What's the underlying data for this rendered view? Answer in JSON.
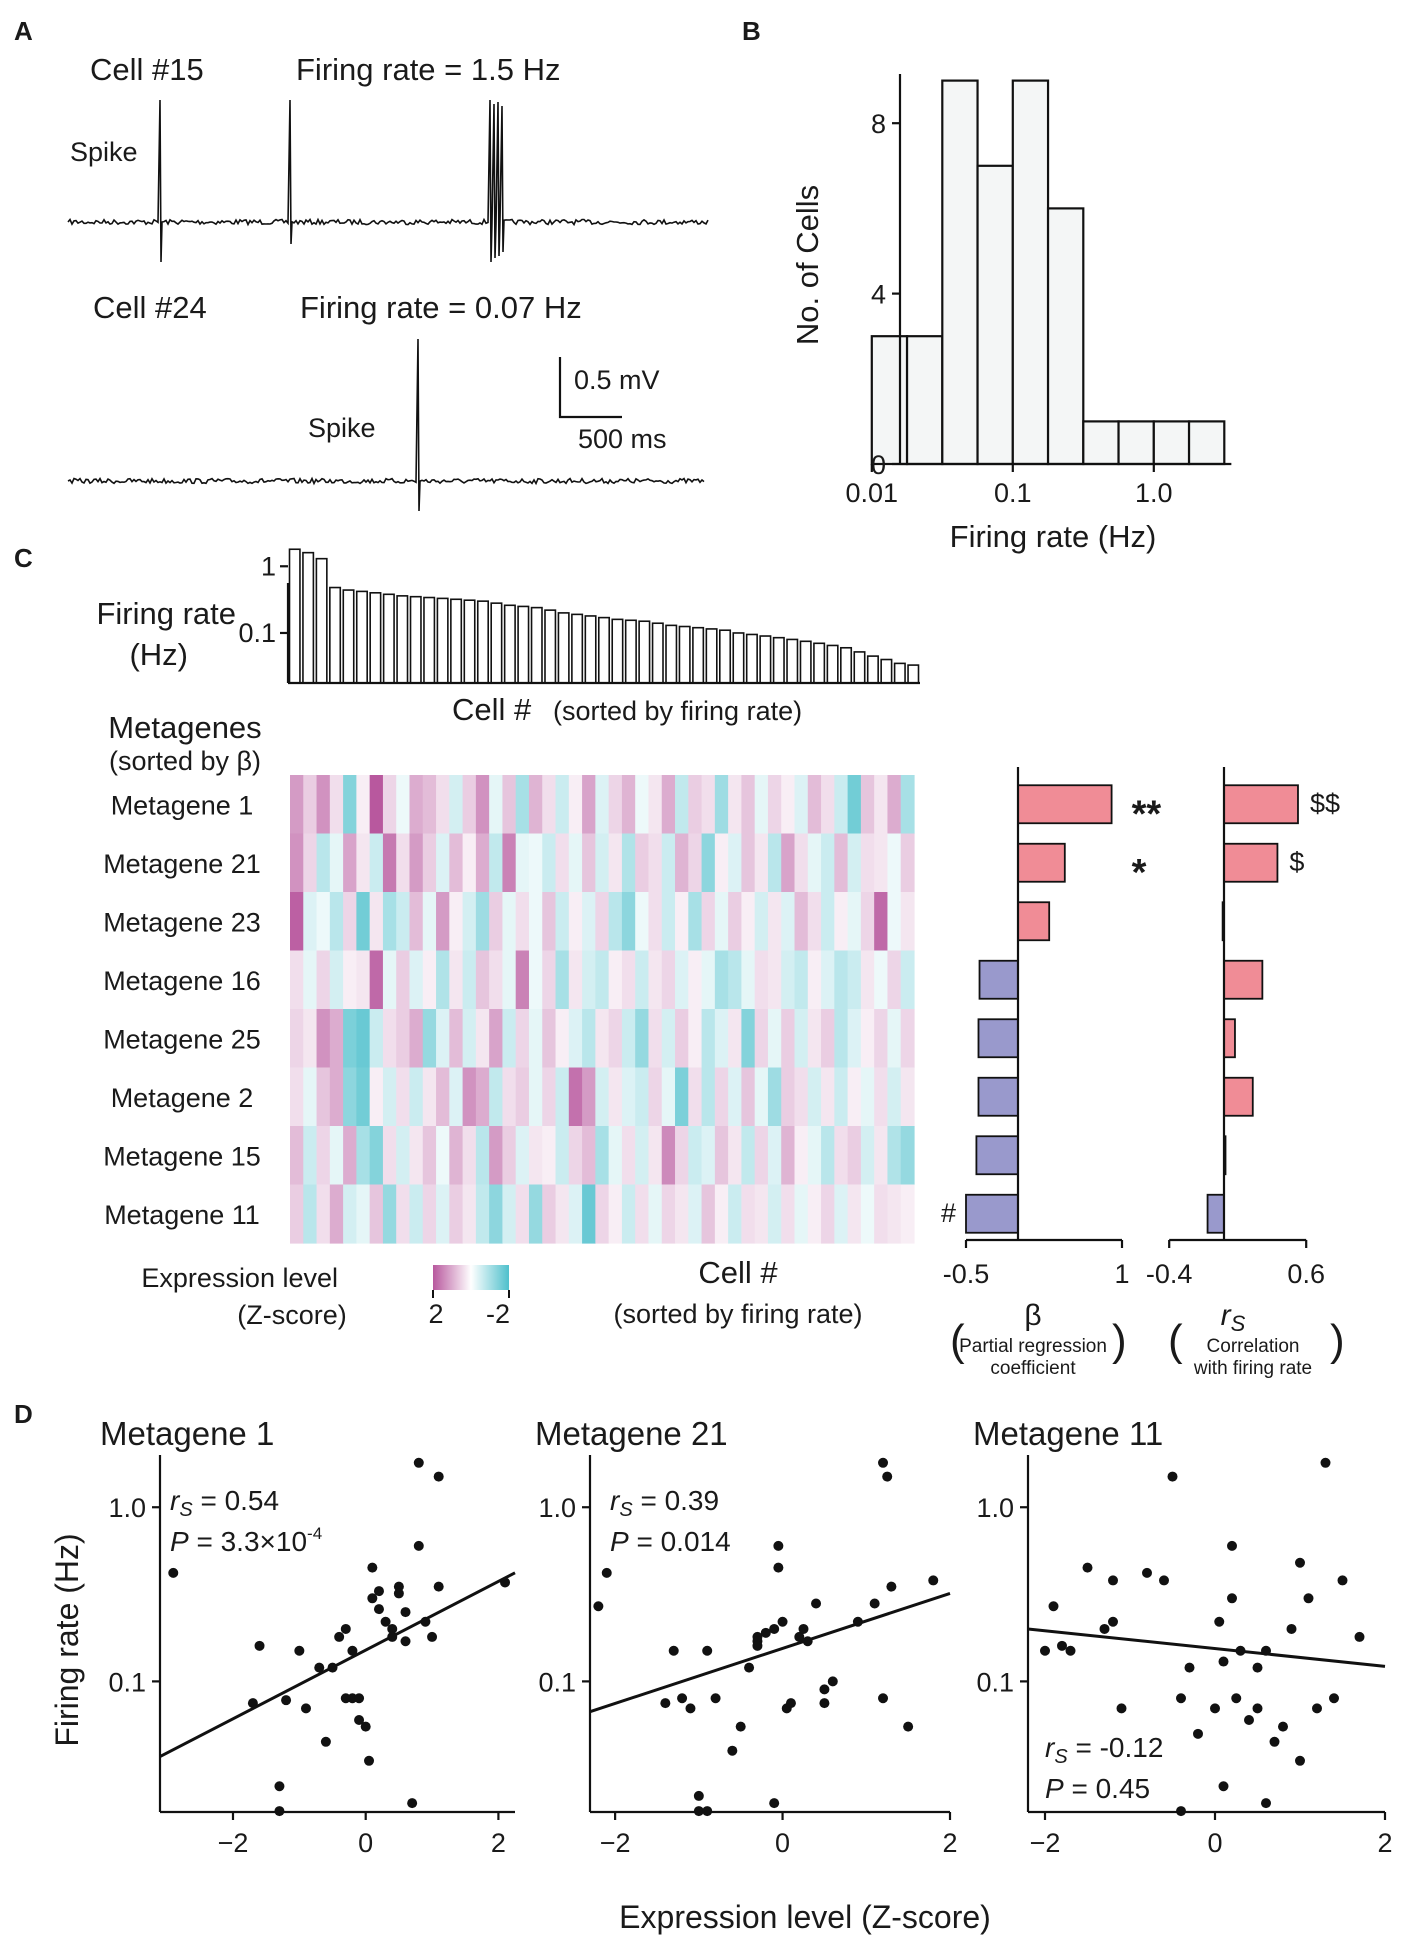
{
  "panel_labels": {
    "a": "A",
    "b": "B",
    "c": "C",
    "d": "D"
  },
  "colors": {
    "high": "#b8589e",
    "low": "#4fc0cc",
    "mid": "#ffffff",
    "positive_bar": "#f08c96",
    "negative_bar": "#9999cc",
    "hist_fill": "#f4f6f6"
  },
  "panel_a": {
    "cell1": {
      "label": "Cell #15",
      "rate_text": "Firing rate = 1.5 Hz",
      "spike_label": "Spike"
    },
    "cell2": {
      "label": "Cell #24",
      "rate_text": "Firing rate = 0.07 Hz",
      "spike_label": "Spike"
    },
    "scalebar": {
      "v_label": "0.5 mV",
      "h_label": "500 ms"
    }
  },
  "chart_data": [
    {
      "id": "B",
      "type": "bar",
      "xscale": "log",
      "bins_log10": [
        -2,
        -1.75,
        -1.5,
        -1.25,
        -1,
        -0.75,
        -0.5,
        -0.25,
        0,
        0.25,
        0.5
      ],
      "values": [
        3,
        3,
        9,
        7,
        9,
        6,
        1,
        1,
        1,
        1
      ],
      "ylim": [
        0,
        9
      ],
      "yticks": [
        0,
        4,
        8
      ],
      "xticks": [
        {
          "v": 0.01,
          "label": "0.01"
        },
        {
          "v": 0.1,
          "label": "0.1"
        },
        {
          "v": 1,
          "label": "1.0"
        }
      ],
      "xlabel": "Firing rate (Hz)",
      "ylabel": "No. of Cells"
    },
    {
      "id": "C-top",
      "type": "bar",
      "yscale": "log",
      "ylabel": [
        "Firing rate",
        "(Hz)"
      ],
      "yticks": [
        {
          "v": 1,
          "label": "1"
        },
        {
          "v": 0.1,
          "label": "0.1"
        }
      ],
      "xlabel": "Cell #",
      "xlabel_note": "(sorted by firing rate)",
      "values": [
        1.8,
        1.6,
        1.3,
        0.48,
        0.44,
        0.42,
        0.4,
        0.38,
        0.36,
        0.35,
        0.34,
        0.33,
        0.32,
        0.31,
        0.3,
        0.28,
        0.26,
        0.25,
        0.24,
        0.22,
        0.2,
        0.19,
        0.18,
        0.17,
        0.16,
        0.155,
        0.15,
        0.14,
        0.13,
        0.125,
        0.12,
        0.115,
        0.11,
        0.1,
        0.095,
        0.09,
        0.085,
        0.08,
        0.075,
        0.07,
        0.065,
        0.06,
        0.052,
        0.045,
        0.04,
        0.035,
        0.033
      ]
    },
    {
      "id": "C-heatmap",
      "type": "heatmap",
      "title": "Metagenes",
      "title_note": "(sorted by β)",
      "rows": [
        "Metagene 1",
        "Metagene 21",
        "Metagene 23",
        "Metagene 16",
        "Metagene 25",
        "Metagene 2",
        "Metagene 15",
        "Metagene 11"
      ],
      "colorbar": {
        "label": "Expression level",
        "label2": "(Z-score)",
        "high_label": "2",
        "low_label": "-2"
      },
      "xlabel": "Cell #",
      "xlabel2": "(sorted by firing rate)",
      "ncols": 47,
      "values": [
        [
          1.2,
          0.6,
          1.3,
          0.4,
          -1.4,
          0.2,
          2.0,
          0.5,
          -0.2,
          1.0,
          0.8,
          0.4,
          -0.5,
          0.6,
          1.3,
          -0.3,
          0.7,
          -1.0,
          0.9,
          0.4,
          -0.6,
          0.2,
          1.1,
          -0.4,
          0.5,
          0.9,
          -0.2,
          0.3,
          1.0,
          -0.7,
          0.6,
          0.4,
          -1.1,
          0.3,
          0.7,
          -0.3,
          0.5,
          0.2,
          -0.4,
          0.8,
          0.4,
          -0.6,
          -1.6,
          0.7,
          0.3,
          1.0,
          -1.0
        ],
        [
          1.3,
          0.5,
          -0.8,
          -0.3,
          1.1,
          0.3,
          -0.6,
          1.6,
          0.4,
          1.2,
          0.6,
          -0.4,
          0.8,
          0.2,
          1.0,
          -0.7,
          1.5,
          -0.3,
          -0.2,
          -0.6,
          0.4,
          -0.3,
          0.7,
          -0.5,
          0.3,
          -0.9,
          0.6,
          0.4,
          -0.6,
          0.9,
          0.5,
          -1.3,
          0.2,
          -0.4,
          0.7,
          0.3,
          -0.8,
          1.1,
          0.4,
          -0.3,
          -0.6,
          0.8,
          -0.5,
          0.4,
          0.3,
          -0.2,
          0.6
        ],
        [
          1.9,
          -0.4,
          -0.2,
          -0.8,
          0.5,
          -1.6,
          0.3,
          -1.0,
          -0.6,
          0.8,
          -0.3,
          1.2,
          0.2,
          -0.5,
          -1.1,
          0.6,
          -0.3,
          0.4,
          -0.2,
          0.7,
          -0.6,
          0.2,
          -0.4,
          0.5,
          -0.8,
          -1.3,
          -0.2,
          0.4,
          -0.6,
          0.2,
          -1.0,
          0.5,
          -0.3,
          0.6,
          0.2,
          -0.5,
          0.3,
          -0.4,
          0.8,
          0.4,
          -0.6,
          0.2,
          -0.3,
          0.5,
          1.8,
          -0.2,
          0.3
        ],
        [
          0.4,
          -0.3,
          0.5,
          -0.5,
          0.2,
          0.3,
          1.8,
          -0.3,
          0.6,
          -0.4,
          0.2,
          -0.9,
          0.3,
          -0.6,
          0.7,
          0.4,
          -0.3,
          1.5,
          -0.2,
          0.5,
          -1.0,
          0.3,
          -0.5,
          -0.7,
          0.2,
          0.4,
          -0.6,
          0.3,
          0.5,
          -0.4,
          0.2,
          -0.3,
          -1.0,
          -0.8,
          -0.3,
          0.4,
          0.3,
          -0.5,
          -0.7,
          0.2,
          -0.4,
          -0.8,
          -0.6,
          0.3,
          -0.2,
          0.5,
          -0.6
        ],
        [
          0.5,
          0.3,
          1.3,
          1.0,
          -1.5,
          -1.7,
          -0.6,
          0.4,
          0.6,
          1.0,
          -1.2,
          -0.4,
          0.8,
          -0.5,
          0.3,
          1.1,
          -0.6,
          0.5,
          -0.3,
          0.7,
          0.2,
          -0.4,
          -0.8,
          0.3,
          0.5,
          -0.6,
          -1.2,
          0.4,
          -0.5,
          0.6,
          0.2,
          -0.8,
          -0.4,
          0.3,
          -1.4,
          0.5,
          -0.3,
          0.6,
          -0.5,
          0.3,
          0.6,
          -0.8,
          -0.4,
          0.2,
          0.5,
          -0.3,
          0.5
        ],
        [
          0.4,
          -0.3,
          0.7,
          1.0,
          -1.3,
          -1.6,
          0.2,
          -0.5,
          0.4,
          -0.6,
          0.3,
          0.8,
          -0.4,
          1.3,
          1.0,
          -0.7,
          0.4,
          0.6,
          -0.3,
          0.5,
          -0.6,
          1.7,
          1.2,
          -0.5,
          0.3,
          -0.4,
          -0.6,
          0.5,
          -0.3,
          -1.5,
          0.4,
          -0.8,
          0.5,
          -0.4,
          0.7,
          -0.3,
          -1.1,
          0.6,
          0.4,
          -0.5,
          0.3,
          -0.6,
          0.2,
          -0.3,
          0.4,
          -0.5,
          0.3
        ],
        [
          0.8,
          -0.6,
          0.5,
          -0.3,
          1.0,
          -1.0,
          -1.4,
          0.4,
          -0.5,
          0.3,
          0.7,
          -0.2,
          0.9,
          0.4,
          -0.8,
          1.2,
          0.6,
          -0.4,
          0.3,
          0.2,
          -0.6,
          0.5,
          0.8,
          -1.0,
          -0.3,
          0.4,
          -0.5,
          0.3,
          1.4,
          0.5,
          -0.6,
          -0.4,
          0.7,
          0.3,
          -0.7,
          0.5,
          -0.4,
          0.9,
          0.2,
          -0.3,
          -0.8,
          0.4,
          0.6,
          -0.5,
          0.3,
          -0.9,
          -1.2
        ],
        [
          0.6,
          -0.8,
          0.4,
          1.0,
          -0.5,
          -0.3,
          0.7,
          -1.2,
          0.4,
          -0.6,
          0.5,
          -0.4,
          0.6,
          0.3,
          -0.7,
          -1.3,
          -0.5,
          0.4,
          -1.2,
          0.6,
          0.3,
          -0.4,
          -1.7,
          0.5,
          0.2,
          -0.6,
          0.4,
          -0.3,
          0.5,
          0.3,
          -0.4,
          0.7,
          0.2,
          -0.6,
          0.4,
          0.3,
          -0.5,
          0.4,
          -0.3,
          0.2,
          0.5,
          -0.4,
          0.3,
          -0.2,
          0.4,
          0.3,
          0.2
        ]
      ]
    },
    {
      "id": "C-beta",
      "type": "bar",
      "orientation": "horizontal",
      "categories": [
        "Metagene 1",
        "Metagene 21",
        "Metagene 23",
        "Metagene 16",
        "Metagene 25",
        "Metagene 2",
        "Metagene 15",
        "Metagene 11"
      ],
      "values": [
        0.9,
        0.45,
        0.3,
        -0.37,
        -0.38,
        -0.38,
        -0.4,
        -0.5
      ],
      "xlim": [
        -0.5,
        1
      ],
      "xticks": [
        {
          "v": -0.5,
          "label": "-0.5"
        },
        {
          "v": 1,
          "label": "1"
        }
      ],
      "annotations": [
        "**",
        "*",
        "",
        "",
        "",
        "",
        "",
        "#"
      ],
      "xlabel": "β",
      "xlabel_note": [
        "Partial regression",
        "coefficient"
      ]
    },
    {
      "id": "C-rs",
      "type": "bar",
      "orientation": "horizontal",
      "categories": [
        "Metagene 1",
        "Metagene 21",
        "Metagene 23",
        "Metagene 16",
        "Metagene 25",
        "Metagene 2",
        "Metagene 15",
        "Metagene 11"
      ],
      "values": [
        0.54,
        0.39,
        -0.01,
        0.28,
        0.08,
        0.21,
        0.0,
        -0.12
      ],
      "xlim": [
        -0.4,
        0.6
      ],
      "xticks": [
        {
          "v": -0.4,
          "label": "-0.4"
        },
        {
          "v": 0.6,
          "label": "0.6"
        }
      ],
      "annotations": [
        "$$",
        "$",
        "",
        "",
        "",
        "",
        "",
        ""
      ],
      "xlabel": "rS",
      "xlabel_note": [
        "Correlation",
        "with firing rate"
      ]
    },
    {
      "id": "D1",
      "type": "scatter",
      "title": "Metagene 1",
      "stat_rs": "= 0.54",
      "stat_p": "= 3.3×10",
      "stat_p_exp": "-4",
      "xlim": [
        -3.1,
        2.25
      ],
      "ylim_log10": [
        -1.75,
        0.3
      ],
      "fit": {
        "x": [
          -3.1,
          2.25
        ],
        "y": [
          0.037,
          0.42
        ]
      },
      "x": [
        -2.9,
        -1.7,
        -1.6,
        -1.3,
        -1.2,
        -1.0,
        -0.9,
        -0.6,
        -0.5,
        -0.4,
        -0.3,
        -0.2,
        -0.2,
        -0.1,
        -0.1,
        0.0,
        0.05,
        0.1,
        0.1,
        0.2,
        0.3,
        0.4,
        0.5,
        0.5,
        0.6,
        0.7,
        0.8,
        0.9,
        1.0,
        1.1,
        0.8,
        1.1,
        0.6,
        2.1,
        -1.3,
        -0.7,
        0.2,
        0.4,
        -0.3
      ],
      "y": [
        0.42,
        0.075,
        0.16,
        0.018,
        0.078,
        0.15,
        0.07,
        0.045,
        0.12,
        0.18,
        0.2,
        0.15,
        0.08,
        0.08,
        0.06,
        0.055,
        0.035,
        0.3,
        0.45,
        0.26,
        0.22,
        0.2,
        0.35,
        0.32,
        0.25,
        0.02,
        0.6,
        0.22,
        0.18,
        0.35,
        1.8,
        1.5,
        0.17,
        0.37,
        0.025,
        0.12,
        0.33,
        0.18,
        0.08
      ]
    },
    {
      "id": "D2",
      "type": "scatter",
      "title": "Metagene 21",
      "stat_rs": "= 0.39",
      "stat_p": "= 0.014",
      "xlim": [
        -2.3,
        2.0
      ],
      "ylim_log10": [
        -1.75,
        0.3
      ],
      "fit": {
        "x": [
          -2.3,
          2.0
        ],
        "y": [
          0.067,
          0.32
        ]
      },
      "x": [
        -2.1,
        -2.2,
        -1.3,
        -1.2,
        -1.1,
        -1.0,
        -1.0,
        -0.9,
        -0.8,
        -0.6,
        -0.5,
        -0.4,
        -0.3,
        -0.2,
        -0.1,
        -0.05,
        -0.05,
        0.0,
        0.05,
        0.1,
        0.2,
        0.3,
        0.4,
        0.5,
        0.6,
        0.9,
        1.1,
        1.2,
        1.25,
        1.3,
        1.5,
        1.8,
        1.2,
        0.25,
        -0.3,
        -0.3,
        0.5,
        -0.1,
        -1.4,
        -0.9
      ],
      "y": [
        0.42,
        0.27,
        0.15,
        0.08,
        0.07,
        0.022,
        0.018,
        0.15,
        0.08,
        0.04,
        0.055,
        0.12,
        0.18,
        0.19,
        0.2,
        0.45,
        0.6,
        0.22,
        0.07,
        0.075,
        0.18,
        0.17,
        0.28,
        0.09,
        0.1,
        0.22,
        0.28,
        1.8,
        1.5,
        0.35,
        0.055,
        0.38,
        0.08,
        0.2,
        0.17,
        0.16,
        0.075,
        0.02,
        0.075,
        0.018
      ]
    },
    {
      "id": "D3",
      "type": "scatter",
      "title": "Metagene 11",
      "stat_rs": "= -0.12",
      "stat_p": "= 0.45",
      "xlim": [
        -2.2,
        2.0
      ],
      "ylim_log10": [
        -1.75,
        0.3
      ],
      "fit": {
        "x": [
          -2.2,
          2.0
        ],
        "y": [
          0.2,
          0.122
        ]
      },
      "x": [
        -2.0,
        -1.9,
        -1.8,
        -1.7,
        -1.5,
        -1.3,
        -1.2,
        -1.2,
        -1.1,
        -0.8,
        -0.6,
        -0.5,
        -0.4,
        -0.3,
        -0.2,
        0.0,
        0.05,
        0.1,
        0.1,
        0.2,
        0.2,
        0.25,
        0.3,
        0.4,
        0.5,
        0.5,
        0.6,
        0.7,
        0.8,
        0.9,
        1.0,
        1.0,
        1.1,
        1.2,
        1.3,
        1.4,
        1.5,
        1.7,
        0.6,
        -0.4
      ],
      "y": [
        0.15,
        0.27,
        0.16,
        0.15,
        0.45,
        0.2,
        0.22,
        0.38,
        0.07,
        0.42,
        0.38,
        1.5,
        0.018,
        0.12,
        0.05,
        0.07,
        0.22,
        0.025,
        0.13,
        0.3,
        0.6,
        0.08,
        0.15,
        0.06,
        0.12,
        0.07,
        0.02,
        0.045,
        0.055,
        0.2,
        0.035,
        0.48,
        0.3,
        0.07,
        1.8,
        0.08,
        0.38,
        0.18,
        0.15,
        0.08
      ]
    }
  ],
  "panel_d_axes": {
    "ylabel": "Firing rate (Hz)",
    "xlabel": "Expression level (Z-score)",
    "yticks": [
      {
        "v": 1,
        "label": "1.0"
      },
      {
        "v": 0.1,
        "label": "0.1"
      }
    ],
    "xticks": [
      {
        "v": -2,
        "label": "−2"
      },
      {
        "v": 0,
        "label": "0"
      },
      {
        "v": 2,
        "label": "2"
      }
    ]
  }
}
